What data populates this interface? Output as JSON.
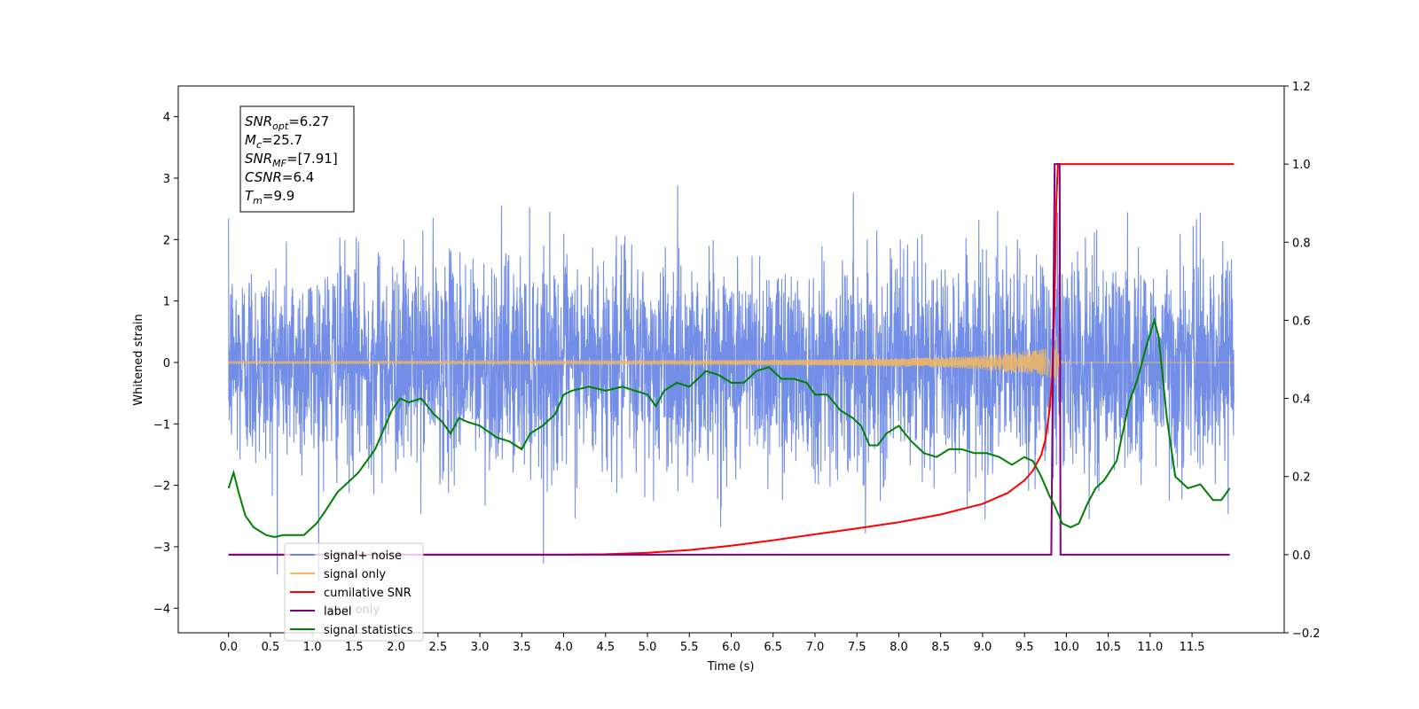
{
  "chart_data": {
    "type": "line",
    "xlabel": "Time (s)",
    "ylabel": "Whitened strain",
    "x_ticks": [
      "0.0",
      "0.5",
      "1.0",
      "1.5",
      "2.0",
      "2.5",
      "3.0",
      "3.5",
      "4.0",
      "4.5",
      "5.0",
      "5.5",
      "6.0",
      "6.5",
      "7.0",
      "7.5",
      "8.0",
      "8.5",
      "9.0",
      "9.5",
      "10.0",
      "10.5",
      "11.0",
      "11.5"
    ],
    "y_left_ticks": [
      "−4",
      "−3",
      "−2",
      "−1",
      "0",
      "1",
      "2",
      "3",
      "4"
    ],
    "y_right_ticks": [
      "−0.2",
      "0.0",
      "0.2",
      "0.4",
      "0.6",
      "0.8",
      "1.0",
      "1.2"
    ],
    "xlim": [
      -0.6,
      12.6
    ],
    "ylim_left": [
      -4.4,
      4.5
    ],
    "ylim_right": [
      -0.2,
      1.2
    ],
    "annotation": [
      {
        "sym": "SNR",
        "sub": "opt",
        "val": "=6.27"
      },
      {
        "sym": "M",
        "sub": "c",
        "val": "=25.7"
      },
      {
        "sym": "SNR",
        "sub": "MF",
        "val": "=[7.91]"
      },
      {
        "sym": "CSNR",
        "sub": "",
        "val": "=6.4"
      },
      {
        "sym": "T",
        "sub": "m",
        "val": "=9.9"
      }
    ],
    "series": [
      {
        "name": "signal+ noise",
        "color": "#6b88e6",
        "axis": "left",
        "noise_std": 0.85,
        "x_range": [
          0.0,
          12.0
        ]
      },
      {
        "name": "signal only",
        "color": "#f5b860",
        "axis": "left",
        "merger_time": 9.88,
        "peak_amplitude": 0.55
      },
      {
        "name": "cumilative SNR",
        "color": "#ff0000",
        "axis": "right",
        "points": [
          [
            0.0,
            0.0
          ],
          [
            3.5,
            0.0
          ],
          [
            4.0,
            0.0
          ],
          [
            4.5,
            0.001
          ],
          [
            5.0,
            0.005
          ],
          [
            5.5,
            0.012
          ],
          [
            6.0,
            0.023
          ],
          [
            6.5,
            0.037
          ],
          [
            7.0,
            0.052
          ],
          [
            7.5,
            0.067
          ],
          [
            8.0,
            0.083
          ],
          [
            8.5,
            0.103
          ],
          [
            9.0,
            0.13
          ],
          [
            9.3,
            0.158
          ],
          [
            9.5,
            0.19
          ],
          [
            9.6,
            0.215
          ],
          [
            9.7,
            0.255
          ],
          [
            9.75,
            0.295
          ],
          [
            9.8,
            0.37
          ],
          [
            9.83,
            0.45
          ],
          [
            9.86,
            0.65
          ],
          [
            9.88,
            0.9
          ],
          [
            9.9,
            1.0
          ],
          [
            12.0,
            1.0
          ]
        ]
      },
      {
        "name": "label",
        "color": "#800080",
        "axis": "right",
        "points": [
          [
            0.0,
            0.0
          ],
          [
            9.82,
            0.0
          ],
          [
            9.86,
            1.0
          ],
          [
            9.92,
            1.0
          ],
          [
            9.93,
            0.0
          ],
          [
            11.95,
            0.0
          ]
        ]
      },
      {
        "name": "signal statistics",
        "color": "#008000",
        "axis": "right",
        "points": [
          [
            0.0,
            0.17
          ],
          [
            0.06,
            0.21
          ],
          [
            0.12,
            0.16
          ],
          [
            0.2,
            0.1
          ],
          [
            0.3,
            0.07
          ],
          [
            0.45,
            0.05
          ],
          [
            0.55,
            0.045
          ],
          [
            0.65,
            0.05
          ],
          [
            0.8,
            0.05
          ],
          [
            0.9,
            0.05
          ],
          [
            0.95,
            0.06
          ],
          [
            1.05,
            0.08
          ],
          [
            1.15,
            0.11
          ],
          [
            1.3,
            0.16
          ],
          [
            1.45,
            0.19
          ],
          [
            1.55,
            0.21
          ],
          [
            1.65,
            0.24
          ],
          [
            1.75,
            0.27
          ],
          [
            1.85,
            0.32
          ],
          [
            1.95,
            0.37
          ],
          [
            2.05,
            0.4
          ],
          [
            2.15,
            0.39
          ],
          [
            2.3,
            0.4
          ],
          [
            2.45,
            0.36
          ],
          [
            2.55,
            0.34
          ],
          [
            2.65,
            0.31
          ],
          [
            2.75,
            0.35
          ],
          [
            2.85,
            0.34
          ],
          [
            3.0,
            0.33
          ],
          [
            3.2,
            0.3
          ],
          [
            3.35,
            0.29
          ],
          [
            3.5,
            0.27
          ],
          [
            3.6,
            0.31
          ],
          [
            3.75,
            0.33
          ],
          [
            3.9,
            0.36
          ],
          [
            4.0,
            0.41
          ],
          [
            4.1,
            0.42
          ],
          [
            4.3,
            0.43
          ],
          [
            4.5,
            0.42
          ],
          [
            4.7,
            0.43
          ],
          [
            4.85,
            0.42
          ],
          [
            5.0,
            0.41
          ],
          [
            5.1,
            0.38
          ],
          [
            5.2,
            0.42
          ],
          [
            5.35,
            0.44
          ],
          [
            5.5,
            0.43
          ],
          [
            5.7,
            0.47
          ],
          [
            5.85,
            0.46
          ],
          [
            6.0,
            0.44
          ],
          [
            6.15,
            0.44
          ],
          [
            6.3,
            0.47
          ],
          [
            6.45,
            0.48
          ],
          [
            6.6,
            0.45
          ],
          [
            6.75,
            0.45
          ],
          [
            6.9,
            0.44
          ],
          [
            7.0,
            0.41
          ],
          [
            7.15,
            0.41
          ],
          [
            7.3,
            0.37
          ],
          [
            7.45,
            0.35
          ],
          [
            7.55,
            0.33
          ],
          [
            7.65,
            0.28
          ],
          [
            7.75,
            0.28
          ],
          [
            7.85,
            0.31
          ],
          [
            8.0,
            0.33
          ],
          [
            8.15,
            0.29
          ],
          [
            8.3,
            0.26
          ],
          [
            8.45,
            0.25
          ],
          [
            8.6,
            0.27
          ],
          [
            8.75,
            0.27
          ],
          [
            8.9,
            0.26
          ],
          [
            9.05,
            0.26
          ],
          [
            9.2,
            0.25
          ],
          [
            9.35,
            0.23
          ],
          [
            9.5,
            0.25
          ],
          [
            9.6,
            0.24
          ],
          [
            9.7,
            0.2
          ],
          [
            9.8,
            0.15
          ],
          [
            9.85,
            0.13
          ],
          [
            9.95,
            0.08
          ],
          [
            10.05,
            0.07
          ],
          [
            10.15,
            0.08
          ],
          [
            10.25,
            0.13
          ],
          [
            10.35,
            0.17
          ],
          [
            10.45,
            0.19
          ],
          [
            10.6,
            0.24
          ],
          [
            10.75,
            0.39
          ],
          [
            10.85,
            0.45
          ],
          [
            10.95,
            0.53
          ],
          [
            11.05,
            0.6
          ],
          [
            11.1,
            0.56
          ],
          [
            11.2,
            0.35
          ],
          [
            11.3,
            0.2
          ],
          [
            11.45,
            0.17
          ],
          [
            11.6,
            0.18
          ],
          [
            11.75,
            0.14
          ],
          [
            11.85,
            0.14
          ],
          [
            11.95,
            0.17
          ]
        ]
      }
    ],
    "legend": {
      "position": "lower-left",
      "entries": [
        "signal+ noise",
        "signal only",
        "cumilative SNR",
        "label",
        "signal statistics"
      ],
      "hidden_text": "label only"
    }
  }
}
